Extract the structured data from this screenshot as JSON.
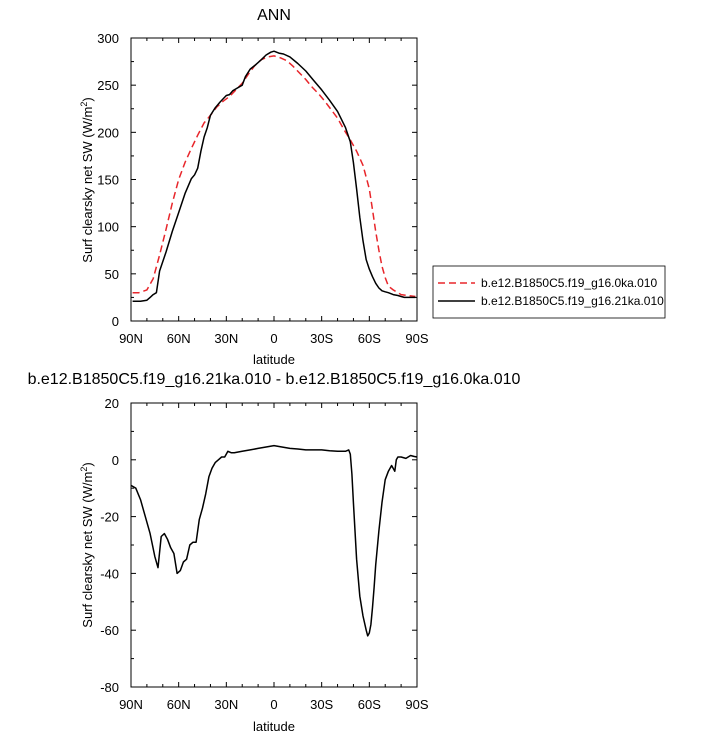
{
  "chart_data": [
    {
      "type": "line",
      "title": "ANN",
      "xlabel": "latitude",
      "ylabel": "Surf clearsky net SW (W/m",
      "ylabel_sup": "2",
      "ylabel_suffix": ")",
      "xlim": [
        90,
        -90
      ],
      "ylim": [
        0,
        300
      ],
      "x_ticks": [
        {
          "value": 90,
          "label": "90N"
        },
        {
          "value": 60,
          "label": "60N"
        },
        {
          "value": 30,
          "label": "30N"
        },
        {
          "value": 0,
          "label": "0"
        },
        {
          "value": -30,
          "label": "30S"
        },
        {
          "value": -60,
          "label": "60S"
        },
        {
          "value": -90,
          "label": "90S"
        }
      ],
      "y_ticks": [
        {
          "value": 0,
          "label": "0"
        },
        {
          "value": 50,
          "label": "50"
        },
        {
          "value": 100,
          "label": "100"
        },
        {
          "value": 150,
          "label": "150"
        },
        {
          "value": 200,
          "label": "200"
        },
        {
          "value": 250,
          "label": "250"
        },
        {
          "value": 300,
          "label": "300"
        }
      ],
      "legend": "right",
      "series": [
        {
          "name": "b.e12.B1850C5.f19_g16.0ka.010",
          "color": "#e8262b",
          "dash": "dashed",
          "x": [
            89,
            85,
            80,
            76,
            72,
            68,
            64,
            60,
            56,
            52,
            48,
            44,
            40,
            36,
            32,
            28,
            24,
            20,
            16,
            12,
            8,
            4,
            0,
            -4,
            -8,
            -12,
            -16,
            -20,
            -24,
            -28,
            -32,
            -36,
            -40,
            -44,
            -48,
            -52,
            -56,
            -60,
            -62,
            -64,
            -66,
            -68,
            -70,
            -72,
            -75,
            -78,
            -80,
            -84,
            -89
          ],
          "y": [
            30,
            30,
            33,
            45,
            70,
            97,
            125,
            150,
            168,
            183,
            197,
            210,
            218,
            227,
            233,
            238,
            245,
            252,
            262,
            271,
            277,
            280,
            281,
            279,
            276,
            270,
            263,
            256,
            248,
            241,
            233,
            224,
            215,
            203,
            192,
            180,
            165,
            140,
            118,
            95,
            75,
            58,
            46,
            37,
            33,
            30,
            28,
            27,
            26
          ]
        },
        {
          "name": "b.e12.B1850C5.f19_g16.21ka.010",
          "color": "#000000",
          "dash": "solid",
          "x": [
            89,
            84,
            80,
            78,
            76,
            74,
            72,
            68,
            64,
            60,
            56,
            52,
            50,
            48,
            46,
            44,
            42,
            40,
            37,
            34,
            30,
            28,
            26,
            24,
            20,
            18,
            15,
            12,
            8,
            5,
            2,
            0,
            -3,
            -6,
            -10,
            -15,
            -20,
            -25,
            -30,
            -35,
            -40,
            -45,
            -48,
            -50,
            -52,
            -54,
            -56,
            -58,
            -60,
            -62,
            -64,
            -66,
            -68,
            -70,
            -72,
            -75,
            -78,
            -80,
            -82,
            -84,
            -86,
            -89
          ],
          "y": [
            21,
            21,
            22,
            25,
            28,
            30,
            53,
            73,
            95,
            115,
            135,
            151,
            155,
            162,
            180,
            195,
            205,
            218,
            226,
            232,
            239,
            240,
            244,
            246,
            250,
            259,
            267,
            271,
            277,
            282,
            285,
            286,
            284,
            283,
            280,
            273,
            265,
            255,
            245,
            234,
            222,
            205,
            190,
            168,
            140,
            110,
            85,
            65,
            55,
            47,
            40,
            35,
            32,
            31,
            30,
            28,
            27,
            26,
            25,
            25,
            25,
            25
          ]
        }
      ]
    },
    {
      "type": "line",
      "title": "b.e12.B1850C5.f19_g16.21ka.010 - b.e12.B1850C5.f19_g16.0ka.010",
      "xlabel": "latitude",
      "ylabel": "Surf clearsky net SW (W/m",
      "ylabel_sup": "2",
      "ylabel_suffix": ")",
      "xlim": [
        90,
        -90
      ],
      "ylim": [
        -80,
        20
      ],
      "x_ticks": [
        {
          "value": 90,
          "label": "90N"
        },
        {
          "value": 60,
          "label": "60N"
        },
        {
          "value": 30,
          "label": "30N"
        },
        {
          "value": 0,
          "label": "0"
        },
        {
          "value": -30,
          "label": "30S"
        },
        {
          "value": -60,
          "label": "60S"
        },
        {
          "value": -90,
          "label": "90S"
        }
      ],
      "y_ticks": [
        {
          "value": -80,
          "label": "-80"
        },
        {
          "value": -60,
          "label": "-60"
        },
        {
          "value": -40,
          "label": "-40"
        },
        {
          "value": -20,
          "label": "-20"
        },
        {
          "value": 0,
          "label": "0"
        },
        {
          "value": 20,
          "label": "20"
        }
      ],
      "series": [
        {
          "color": "#000000",
          "dash": "solid",
          "x": [
            90,
            87,
            84,
            81,
            78,
            75,
            73,
            71,
            69,
            67,
            65,
            63,
            61,
            59,
            57,
            55,
            53,
            51,
            49,
            47,
            45,
            43,
            41,
            39,
            37,
            35,
            33,
            31,
            29,
            27,
            25,
            20,
            15,
            10,
            5,
            0,
            -5,
            -10,
            -15,
            -20,
            -25,
            -30,
            -35,
            -40,
            -45,
            -47,
            -48,
            -49,
            -50,
            -51,
            -52,
            -54,
            -56,
            -58,
            -59,
            -60,
            -61,
            -62,
            -63,
            -64,
            -66,
            -68,
            -70,
            -72,
            -74,
            -76,
            -77,
            -78,
            -80,
            -83,
            -86,
            -88,
            -90
          ],
          "y": [
            -9,
            -10,
            -14,
            -20,
            -26,
            -34,
            -38,
            -27,
            -26,
            -28,
            -31,
            -33,
            -40,
            -39,
            -36,
            -35,
            -30,
            -29,
            -29,
            -21,
            -17,
            -12,
            -6,
            -3,
            -1,
            0,
            1,
            1,
            3,
            2.5,
            2.5,
            3,
            3.5,
            4,
            4.5,
            5,
            4.5,
            4,
            3.8,
            3.5,
            3.5,
            3.5,
            3.2,
            3,
            3,
            3.5,
            2,
            -5,
            -15,
            -25,
            -35,
            -48,
            -55,
            -60,
            -62,
            -61,
            -58,
            -52,
            -45,
            -37,
            -25,
            -15,
            -7,
            -4,
            -2,
            -4,
            0,
            1,
            1,
            0.5,
            1.5,
            1.2,
            1
          ]
        }
      ]
    }
  ]
}
